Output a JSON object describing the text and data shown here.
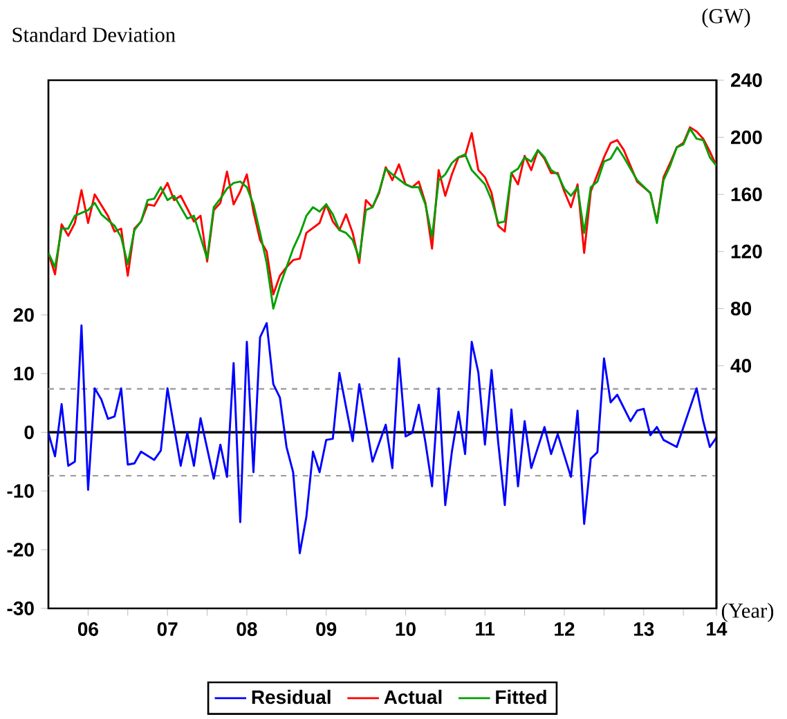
{
  "chart_data": {
    "type": "line",
    "ylabel": "Standard Deviation",
    "y2label": "(GW)",
    "xlabel": "(Year)",
    "xlim": [
      "2006-01",
      "2014-06"
    ],
    "xticks": [
      {
        "value": "2006-07",
        "label": "06"
      },
      {
        "value": "2007-01",
        "label": null
      },
      {
        "value": "2007-07",
        "label": "07"
      },
      {
        "value": "2008-01",
        "label": null
      },
      {
        "value": "2008-07",
        "label": "08"
      },
      {
        "value": "2009-01",
        "label": null
      },
      {
        "value": "2009-07",
        "label": "09"
      },
      {
        "value": "2010-01",
        "label": null
      },
      {
        "value": "2010-07",
        "label": "10"
      },
      {
        "value": "2011-01",
        "label": null
      },
      {
        "value": "2011-07",
        "label": "11"
      },
      {
        "value": "2012-01",
        "label": null
      },
      {
        "value": "2012-07",
        "label": "12"
      },
      {
        "value": "2013-01",
        "label": null
      },
      {
        "value": "2013-07",
        "label": "13"
      },
      {
        "value": "2014-01",
        "label": null
      },
      {
        "value": "2014-06",
        "label": "14"
      }
    ],
    "ylim": [
      -30,
      60
    ],
    "yticks": [
      -30,
      -20,
      -10,
      0,
      10,
      20
    ],
    "y2lim": [
      -130,
      240
    ],
    "y2ticks": [
      40,
      80,
      120,
      160,
      200,
      240
    ],
    "legend": "bottom",
    "ref_lines": [
      {
        "axis": "y",
        "value": 0,
        "color": "#000000",
        "line_style": "solid"
      },
      {
        "axis": "y",
        "value": 7.4,
        "color": "#a0a0a0",
        "line_style": "dashed"
      },
      {
        "axis": "y",
        "value": -7.4,
        "color": "#a0a0a0",
        "line_style": "dashed"
      }
    ],
    "series": [
      {
        "name": "Residual",
        "color": "#0000ff",
        "axis": "y",
        "x": [
          "2006-01",
          "2006-02",
          "2006-03",
          "2006-04",
          "2006-05",
          "2006-06",
          "2006-07",
          "2006-08",
          "2006-09",
          "2006-10",
          "2006-11",
          "2006-12",
          "2007-01",
          "2007-02",
          "2007-03",
          "2007-05",
          "2007-06",
          "2007-07",
          "2007-09",
          "2007-10",
          "2007-11",
          "2007-12",
          "2008-02",
          "2008-03",
          "2008-04",
          "2008-05",
          "2008-06",
          "2008-07",
          "2008-08",
          "2008-09",
          "2008-10",
          "2008-11",
          "2008-12",
          "2009-01",
          "2009-02",
          "2009-03",
          "2009-04",
          "2009-05",
          "2009-06",
          "2009-07",
          "2009-08",
          "2009-09",
          "2009-11",
          "2009-12",
          "2010-02",
          "2010-04",
          "2010-05",
          "2010-06",
          "2010-07",
          "2010-08",
          "2010-09",
          "2010-10",
          "2010-11",
          "2010-12",
          "2011-01",
          "2011-02",
          "2011-03",
          "2011-04",
          "2011-05",
          "2011-06",
          "2011-07",
          "2011-08",
          "2011-09",
          "2011-10",
          "2011-11",
          "2011-12",
          "2012-01",
          "2012-02",
          "2012-04",
          "2012-05",
          "2012-06",
          "2012-08",
          "2012-09",
          "2012-10",
          "2012-11",
          "2012-12",
          "2013-01",
          "2013-02",
          "2013-03",
          "2013-05",
          "2013-06",
          "2013-07",
          "2013-08",
          "2013-09",
          "2013-10",
          "2013-12",
          "2014-03",
          "2014-04",
          "2014-05",
          "2014-06"
        ],
        "values": [
          -0.1,
          -4.1,
          4.8,
          -5.7,
          -5.0,
          18.2,
          -9.8,
          7.5,
          5.6,
          2.3,
          2.7,
          7.5,
          -5.5,
          -5.3,
          -3.3,
          -4.7,
          -3.1,
          7.5,
          -5.7,
          -0.1,
          -5.7,
          2.4,
          -7.9,
          -2.1,
          -7.6,
          11.8,
          -15.3,
          15.4,
          -6.8,
          16.2,
          18.6,
          8.2,
          5.9,
          -2.5,
          -6.8,
          -20.6,
          -14.4,
          -3.3,
          -6.8,
          -1.3,
          -1.1,
          10.1,
          -1.5,
          8.2,
          -5.0,
          1.3,
          -6.1,
          12.6,
          -0.7,
          -0.1,
          4.7,
          -1.7,
          -9.2,
          7.5,
          -12.4,
          -3.3,
          3.5,
          -3.7,
          15.4,
          10.2,
          -2.1,
          10.6,
          -1.7,
          -12.4,
          3.9,
          -9.2,
          1.9,
          -6.1,
          0.9,
          -3.7,
          -0.3,
          -7.6,
          3.7,
          -15.6,
          -4.5,
          -3.4,
          12.6,
          5.1,
          6.4,
          1.9,
          3.7,
          4.0,
          -0.5,
          0.9,
          -1.3,
          -2.5,
          7.5,
          1.9,
          -2.5,
          -0.9
        ]
      },
      {
        "name": "Actual",
        "color": "#ff0000",
        "axis": "y2",
        "x": [
          "2006-01",
          "2006-02",
          "2006-03",
          "2006-04",
          "2006-05",
          "2006-06",
          "2006-07",
          "2006-08",
          "2006-10",
          "2006-11",
          "2006-12",
          "2007-01",
          "2007-02",
          "2007-03",
          "2007-04",
          "2007-05",
          "2007-07",
          "2007-08",
          "2007-09",
          "2007-11",
          "2007-12",
          "2008-01",
          "2008-02",
          "2008-03",
          "2008-04",
          "2008-05",
          "2008-06",
          "2008-07",
          "2008-08",
          "2008-09",
          "2008-10",
          "2008-11",
          "2008-12",
          "2009-01",
          "2009-02",
          "2009-03",
          "2009-04",
          "2009-06",
          "2009-07",
          "2009-08",
          "2009-09",
          "2009-10",
          "2009-11",
          "2009-12",
          "2010-01",
          "2010-02",
          "2010-03",
          "2010-04",
          "2010-05",
          "2010-06",
          "2010-07",
          "2010-08",
          "2010-09",
          "2010-10",
          "2010-11",
          "2010-12",
          "2011-01",
          "2011-02",
          "2011-03",
          "2011-04",
          "2011-05",
          "2011-06",
          "2011-07",
          "2011-08",
          "2011-09",
          "2011-10",
          "2011-11",
          "2011-12",
          "2012-01",
          "2012-02",
          "2012-03",
          "2012-04",
          "2012-05",
          "2012-06",
          "2012-07",
          "2012-08",
          "2012-09",
          "2012-10",
          "2012-11",
          "2013-01",
          "2013-02",
          "2013-03",
          "2013-04",
          "2013-05",
          "2013-06",
          "2013-08",
          "2013-09",
          "2013-10",
          "2013-11",
          "2013-12",
          "2014-01",
          "2014-02",
          "2014-03",
          "2014-04",
          "2014-05",
          "2014-06"
        ],
        "values": [
          119,
          104,
          139,
          131,
          140,
          163,
          140,
          160,
          145,
          134,
          136,
          103,
          136,
          141,
          153,
          152,
          168,
          156,
          159,
          141,
          145,
          113,
          149,
          154,
          176,
          153,
          162,
          174,
          148,
          128,
          120,
          90,
          103,
          109,
          114,
          115,
          133,
          140,
          153,
          141,
          135,
          146,
          133,
          112,
          156,
          151,
          161,
          179,
          170,
          181,
          167,
          165,
          169,
          154,
          122,
          177,
          159,
          174,
          186,
          187,
          203,
          177,
          172,
          161,
          138,
          134,
          175,
          167,
          187,
          177,
          191,
          185,
          175,
          175,
          162,
          151,
          167,
          119,
          162,
          186,
          196,
          198,
          191,
          180,
          169,
          161,
          141,
          172,
          182,
          193,
          196,
          207,
          204,
          199,
          190,
          180
        ]
      },
      {
        "name": "Fitted",
        "color": "#00a000",
        "axis": "y2",
        "x": [
          "2006-01",
          "2006-02",
          "2006-03",
          "2006-04",
          "2006-05",
          "2006-06",
          "2006-07",
          "2006-08",
          "2006-09",
          "2006-10",
          "2006-11",
          "2006-12",
          "2007-01",
          "2007-02",
          "2007-03",
          "2007-04",
          "2007-05",
          "2007-06",
          "2007-07",
          "2007-08",
          "2007-09",
          "2007-10",
          "2007-11",
          "2008-01",
          "2008-02",
          "2008-03",
          "2008-04",
          "2008-05",
          "2008-06",
          "2008-07",
          "2008-08",
          "2008-09",
          "2008-10",
          "2008-11",
          "2008-12",
          "2009-01",
          "2009-02",
          "2009-03",
          "2009-04",
          "2009-05",
          "2009-06",
          "2009-07",
          "2009-08",
          "2009-09",
          "2009-10",
          "2009-11",
          "2009-12",
          "2010-01",
          "2010-02",
          "2010-03",
          "2010-04",
          "2010-05",
          "2010-07",
          "2010-08",
          "2010-09",
          "2010-10",
          "2010-11",
          "2010-12",
          "2011-01",
          "2011-02",
          "2011-03",
          "2011-04",
          "2011-05",
          "2011-06",
          "2011-07",
          "2011-08",
          "2011-09",
          "2011-10",
          "2011-11",
          "2011-12",
          "2012-01",
          "2012-02",
          "2012-03",
          "2012-04",
          "2012-05",
          "2012-06",
          "2012-07",
          "2012-08",
          "2012-09",
          "2012-10",
          "2012-11",
          "2012-12",
          "2013-01",
          "2013-02",
          "2013-03",
          "2013-04",
          "2013-05",
          "2013-06",
          "2013-08",
          "2013-09",
          "2013-10",
          "2013-11",
          "2013-12",
          "2014-01",
          "2014-02",
          "2014-03",
          "2014-04",
          "2014-05",
          "2014-06"
        ],
        "values": [
          119,
          109,
          136,
          136,
          145,
          147,
          149,
          154,
          146,
          142,
          138,
          130,
          111,
          135,
          141,
          156,
          157,
          165,
          156,
          159,
          151,
          143,
          145,
          115,
          151,
          157,
          164,
          168,
          169,
          165,
          153,
          133,
          112,
          80,
          96,
          109,
          122,
          132,
          145,
          151,
          148,
          153,
          146,
          135,
          133,
          128,
          115,
          149,
          151,
          162,
          178,
          174,
          167,
          165,
          165,
          153,
          130,
          170,
          174,
          182,
          186,
          188,
          177,
          172,
          167,
          156,
          140,
          141,
          175,
          178,
          186,
          183,
          191,
          186,
          177,
          174,
          164,
          159,
          165,
          133,
          165,
          169,
          183,
          185,
          193,
          186,
          178,
          170,
          161,
          140,
          170,
          180,
          193,
          195,
          206,
          199,
          198,
          186,
          180
        ]
      }
    ]
  }
}
